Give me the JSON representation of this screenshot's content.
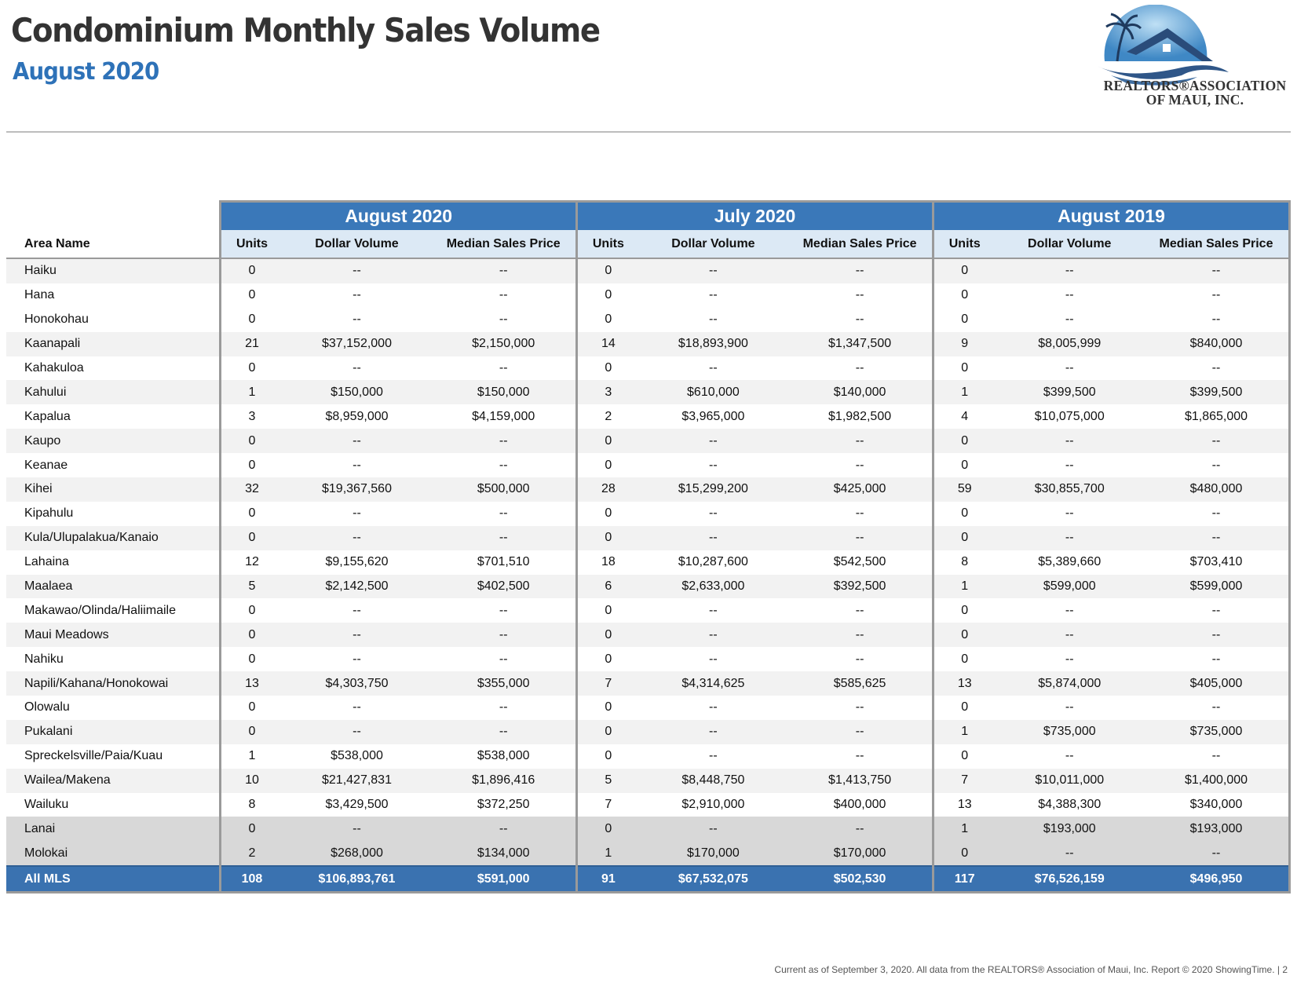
{
  "header": {
    "title": "Condominium Monthly Sales Volume",
    "subtitle": "August 2020"
  },
  "logo": {
    "line1": "REALTORS®ASSOCIATION",
    "line2": "OF MAUI, INC.",
    "icon": "house-palm-logo-icon",
    "colors": {
      "sky": "#4a90c8",
      "roof": "#2a4c7a",
      "wave": "#3a5f8c"
    }
  },
  "table": {
    "area_header": "Area Name",
    "groups": [
      "August 2020",
      "July 2020",
      "August 2019"
    ],
    "columns": [
      "Units",
      "Dollar Volume",
      "Median Sales Price"
    ],
    "rows": [
      {
        "area": "Haiku",
        "type": "alt",
        "v": [
          "0",
          "--",
          "--",
          "0",
          "--",
          "--",
          "0",
          "--",
          "--"
        ]
      },
      {
        "area": "Hana",
        "type": "alt2",
        "v": [
          "0",
          "--",
          "--",
          "0",
          "--",
          "--",
          "0",
          "--",
          "--"
        ]
      },
      {
        "area": "Honokohau",
        "type": "alt2",
        "v": [
          "0",
          "--",
          "--",
          "0",
          "--",
          "--",
          "0",
          "--",
          "--"
        ]
      },
      {
        "area": "Kaanapali",
        "type": "alt",
        "v": [
          "21",
          "$37,152,000",
          "$2,150,000",
          "14",
          "$18,893,900",
          "$1,347,500",
          "9",
          "$8,005,999",
          "$840,000"
        ]
      },
      {
        "area": "Kahakuloa",
        "type": "alt2",
        "v": [
          "0",
          "--",
          "--",
          "0",
          "--",
          "--",
          "0",
          "--",
          "--"
        ]
      },
      {
        "area": "Kahului",
        "type": "alt",
        "v": [
          "1",
          "$150,000",
          "$150,000",
          "3",
          "$610,000",
          "$140,000",
          "1",
          "$399,500",
          "$399,500"
        ]
      },
      {
        "area": "Kapalua",
        "type": "alt2",
        "v": [
          "3",
          "$8,959,000",
          "$4,159,000",
          "2",
          "$3,965,000",
          "$1,982,500",
          "4",
          "$10,075,000",
          "$1,865,000"
        ]
      },
      {
        "area": "Kaupo",
        "type": "alt",
        "v": [
          "0",
          "--",
          "--",
          "0",
          "--",
          "--",
          "0",
          "--",
          "--"
        ]
      },
      {
        "area": "Keanae",
        "type": "alt2",
        "v": [
          "0",
          "--",
          "--",
          "0",
          "--",
          "--",
          "0",
          "--",
          "--"
        ]
      },
      {
        "area": "Kihei",
        "type": "alt",
        "v": [
          "32",
          "$19,367,560",
          "$500,000",
          "28",
          "$15,299,200",
          "$425,000",
          "59",
          "$30,855,700",
          "$480,000"
        ]
      },
      {
        "area": "Kipahulu",
        "type": "alt2",
        "v": [
          "0",
          "--",
          "--",
          "0",
          "--",
          "--",
          "0",
          "--",
          "--"
        ]
      },
      {
        "area": "Kula/Ulupalakua/Kanaio",
        "type": "alt",
        "v": [
          "0",
          "--",
          "--",
          "0",
          "--",
          "--",
          "0",
          "--",
          "--"
        ]
      },
      {
        "area": "Lahaina",
        "type": "alt2",
        "v": [
          "12",
          "$9,155,620",
          "$701,510",
          "18",
          "$10,287,600",
          "$542,500",
          "8",
          "$5,389,660",
          "$703,410"
        ]
      },
      {
        "area": "Maalaea",
        "type": "alt",
        "v": [
          "5",
          "$2,142,500",
          "$402,500",
          "6",
          "$2,633,000",
          "$392,500",
          "1",
          "$599,000",
          "$599,000"
        ]
      },
      {
        "area": "Makawao/Olinda/Haliimaile",
        "type": "alt2",
        "v": [
          "0",
          "--",
          "--",
          "0",
          "--",
          "--",
          "0",
          "--",
          "--"
        ]
      },
      {
        "area": "Maui Meadows",
        "type": "alt",
        "v": [
          "0",
          "--",
          "--",
          "0",
          "--",
          "--",
          "0",
          "--",
          "--"
        ]
      },
      {
        "area": "Nahiku",
        "type": "alt2",
        "v": [
          "0",
          "--",
          "--",
          "0",
          "--",
          "--",
          "0",
          "--",
          "--"
        ]
      },
      {
        "area": "Napili/Kahana/Honokowai",
        "type": "alt",
        "v": [
          "13",
          "$4,303,750",
          "$355,000",
          "7",
          "$4,314,625",
          "$585,625",
          "13",
          "$5,874,000",
          "$405,000"
        ]
      },
      {
        "area": "Olowalu",
        "type": "alt2",
        "v": [
          "0",
          "--",
          "--",
          "0",
          "--",
          "--",
          "0",
          "--",
          "--"
        ]
      },
      {
        "area": "Pukalani",
        "type": "alt",
        "v": [
          "0",
          "--",
          "--",
          "0",
          "--",
          "--",
          "1",
          "$735,000",
          "$735,000"
        ]
      },
      {
        "area": "Spreckelsville/Paia/Kuau",
        "type": "alt2",
        "v": [
          "1",
          "$538,000",
          "$538,000",
          "0",
          "--",
          "--",
          "0",
          "--",
          "--"
        ]
      },
      {
        "area": "Wailea/Makena",
        "type": "alt",
        "v": [
          "10",
          "$21,427,831",
          "$1,896,416",
          "5",
          "$8,448,750",
          "$1,413,750",
          "7",
          "$10,011,000",
          "$1,400,000"
        ]
      },
      {
        "area": "Wailuku",
        "type": "alt2",
        "v": [
          "8",
          "$3,429,500",
          "$372,250",
          "7",
          "$2,910,000",
          "$400,000",
          "13",
          "$4,388,300",
          "$340,000"
        ]
      },
      {
        "area": "Lanai",
        "type": "island",
        "v": [
          "0",
          "--",
          "--",
          "0",
          "--",
          "--",
          "1",
          "$193,000",
          "$193,000"
        ]
      },
      {
        "area": "Molokai",
        "type": "island",
        "v": [
          "2",
          "$268,000",
          "$134,000",
          "1",
          "$170,000",
          "$170,000",
          "0",
          "--",
          "--"
        ]
      },
      {
        "area": "All MLS",
        "type": "total",
        "v": [
          "108",
          "$106,893,761",
          "$591,000",
          "91",
          "$67,532,075",
          "$502,530",
          "117",
          "$76,526,159",
          "$496,950"
        ]
      }
    ]
  },
  "footer": "Current as of September 3, 2020. All data from the REALTORS® Association of Maui, Inc. Report © 2020 ShowingTime. | 2"
}
